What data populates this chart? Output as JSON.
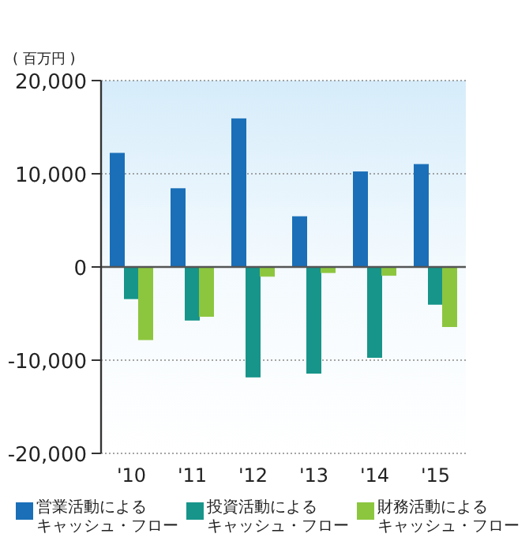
{
  "chart_data": {
    "type": "bar",
    "ylabel": "( 百万円 )",
    "categories": [
      "'10",
      "'11",
      "'12",
      "'13",
      "'14",
      "'15"
    ],
    "series": [
      {
        "name": "営業活動によるキャッシュ・フロー",
        "color": "#1a6fb8",
        "values": [
          12200,
          8400,
          15900,
          5400,
          10200,
          11000
        ]
      },
      {
        "name": "投資活動によるキャッシュ・フロー",
        "color": "#17958a",
        "values": [
          -3400,
          -5700,
          -11800,
          -11400,
          -9700,
          -4000
        ]
      },
      {
        "name": "財務活動によるキャッシュ・フロー",
        "color": "#8cc63f",
        "values": [
          -7800,
          -5300,
          -1000,
          -600,
          -900,
          -6400
        ]
      }
    ],
    "ylim": [
      -20000,
      20000
    ],
    "yticks": [
      {
        "value": -20000,
        "label": "-20,000"
      },
      {
        "value": -10000,
        "label": "-10,000"
      },
      0,
      {
        "value": 10000,
        "label": "10,000"
      },
      {
        "value": 20000,
        "label": "20,000"
      }
    ],
    "grid": "y",
    "legend": "bottom"
  }
}
